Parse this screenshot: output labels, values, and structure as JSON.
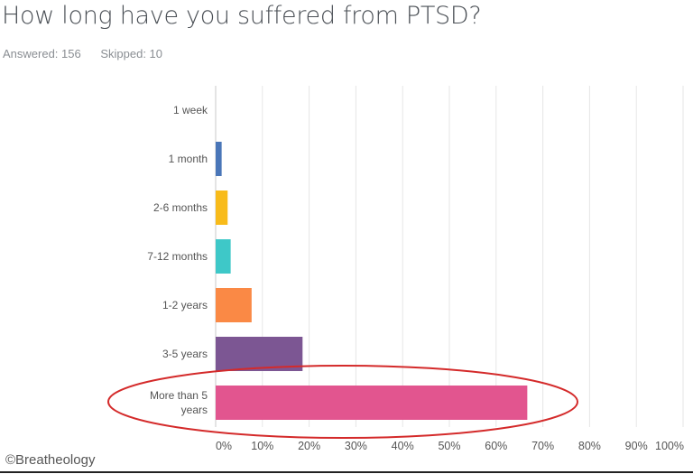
{
  "header": {
    "title": "How long have you suffered from PTSD?",
    "answered": "Answered: 156",
    "skipped": "Skipped: 10"
  },
  "credit": "©Breatheology",
  "chart_data": {
    "type": "bar",
    "orientation": "horizontal",
    "title": "How long have you suffered from PTSD?",
    "categories": [
      [
        "1 week"
      ],
      [
        "1 month"
      ],
      [
        "2-6 months"
      ],
      [
        "7-12 months"
      ],
      [
        "1-2 years"
      ],
      [
        "3-5 years"
      ],
      [
        "More than 5",
        "years"
      ]
    ],
    "values": [
      0,
      1.28,
      2.56,
      3.21,
      7.69,
      18.59,
      66.67
    ],
    "colors": [
      "#2d9cdb",
      "#4a76b8",
      "#f8bb1a",
      "#3ec8c8",
      "#fa8945",
      "#7c5693",
      "#e2558f"
    ],
    "xlim": [
      0,
      100
    ],
    "xticks": [
      "0%",
      "10%",
      "20%",
      "30%",
      "40%",
      "50%",
      "60%",
      "70%",
      "80%",
      "90%",
      "100%"
    ],
    "grid": true,
    "highlight_category": "More than 5 years",
    "highlight_color": "#d42a2a"
  }
}
